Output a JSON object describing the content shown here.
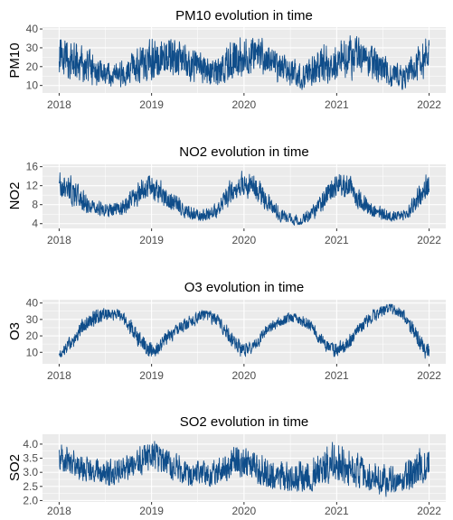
{
  "chart_data": [
    {
      "type": "line",
      "title": "PM10 evolution in time",
      "xlabel": "",
      "ylabel": "PM10",
      "x_ticks": [
        "2018",
        "2019",
        "2020",
        "2021",
        "2022"
      ],
      "xlim": [
        "2018-01-01",
        "2022-01-01"
      ],
      "y_ticks": [
        10,
        20,
        30,
        40
      ],
      "ylim": [
        6,
        41
      ],
      "grid": true,
      "line_color": "#0f4d8a",
      "panel_bg": "#ebebeb",
      "grid_color": "#ffffff",
      "x": [
        "2018-01",
        "2018-02",
        "2018-03",
        "2018-04",
        "2018-05",
        "2018-06",
        "2018-07",
        "2018-08",
        "2018-09",
        "2018-10",
        "2018-11",
        "2018-12",
        "2019-01",
        "2019-02",
        "2019-03",
        "2019-04",
        "2019-05",
        "2019-06",
        "2019-07",
        "2019-08",
        "2019-09",
        "2019-10",
        "2019-11",
        "2019-12",
        "2020-01",
        "2020-02",
        "2020-03",
        "2020-04",
        "2020-05",
        "2020-06",
        "2020-07",
        "2020-08",
        "2020-09",
        "2020-10",
        "2020-11",
        "2020-12",
        "2021-01",
        "2021-02",
        "2021-03",
        "2021-04",
        "2021-05",
        "2021-06",
        "2021-07",
        "2021-08",
        "2021-09",
        "2021-10",
        "2021-11",
        "2021-12"
      ],
      "series": [
        {
          "name": "",
          "center": [
            27,
            24,
            22,
            20,
            19,
            17,
            16,
            16,
            18,
            20,
            21,
            19,
            23,
            25,
            26,
            24,
            22,
            20,
            19,
            17,
            18,
            21,
            23,
            22,
            24,
            26,
            25,
            22,
            20,
            17,
            15,
            14,
            16,
            19,
            21,
            20,
            22,
            24,
            26,
            25,
            23,
            20,
            17,
            15,
            14,
            16,
            22,
            26
          ],
          "low": [
            12,
            9,
            8,
            9,
            8,
            7,
            7,
            7,
            8,
            9,
            10,
            11,
            11,
            11,
            12,
            11,
            10,
            9,
            8,
            7,
            8,
            9,
            10,
            11,
            12,
            12,
            11,
            10,
            9,
            8,
            7,
            7,
            7,
            8,
            9,
            10,
            11,
            11,
            12,
            11,
            10,
            9,
            8,
            7,
            7,
            8,
            10,
            12
          ],
          "high": [
            38,
            37,
            35,
            32,
            29,
            27,
            25,
            24,
            27,
            30,
            34,
            37,
            38,
            39,
            39,
            36,
            33,
            31,
            29,
            26,
            28,
            32,
            37,
            39,
            39,
            39,
            37,
            33,
            30,
            27,
            25,
            24,
            26,
            31,
            35,
            36,
            37,
            38,
            39,
            37,
            34,
            30,
            27,
            24,
            23,
            27,
            34,
            39
          ]
        }
      ]
    },
    {
      "type": "line",
      "title": "NO2 evolution in time",
      "xlabel": "",
      "ylabel": "NO2",
      "x_ticks": [
        "2018",
        "2019",
        "2020",
        "2021",
        "2022"
      ],
      "xlim": [
        "2018-01-01",
        "2022-01-01"
      ],
      "y_ticks": [
        4,
        8,
        12,
        16
      ],
      "ylim": [
        3,
        16.5
      ],
      "grid": true,
      "line_color": "#0f4d8a",
      "panel_bg": "#ebebeb",
      "grid_color": "#ffffff",
      "x": [
        "2018-01",
        "2018-02",
        "2018-03",
        "2018-04",
        "2018-05",
        "2018-06",
        "2018-07",
        "2018-08",
        "2018-09",
        "2018-10",
        "2018-11",
        "2018-12",
        "2019-01",
        "2019-02",
        "2019-03",
        "2019-04",
        "2019-05",
        "2019-06",
        "2019-07",
        "2019-08",
        "2019-09",
        "2019-10",
        "2019-11",
        "2019-12",
        "2020-01",
        "2020-02",
        "2020-03",
        "2020-04",
        "2020-05",
        "2020-06",
        "2020-07",
        "2020-08",
        "2020-09",
        "2020-10",
        "2020-11",
        "2020-12",
        "2021-01",
        "2021-02",
        "2021-03",
        "2021-04",
        "2021-05",
        "2021-06",
        "2021-07",
        "2021-08",
        "2021-09",
        "2021-10",
        "2021-11",
        "2021-12"
      ],
      "series": [
        {
          "name": "",
          "center": [
            11.5,
            10.5,
            9.0,
            8.0,
            7.2,
            6.8,
            6.7,
            6.9,
            7.5,
            8.8,
            10.5,
            11.8,
            11.5,
            10.2,
            8.8,
            7.5,
            6.5,
            5.8,
            5.5,
            5.8,
            6.8,
            8.8,
            11.0,
            12.0,
            12.3,
            11.0,
            9.2,
            7.4,
            6.0,
            5.0,
            4.6,
            4.8,
            5.6,
            7.2,
            9.5,
            11.6,
            12.5,
            11.5,
            9.8,
            8.0,
            6.8,
            6.0,
            5.6,
            5.5,
            5.8,
            6.8,
            9.2,
            11.4
          ],
          "low": [
            8.5,
            7.5,
            6.5,
            6.0,
            5.5,
            5.2,
            5.0,
            5.2,
            5.5,
            6.5,
            7.5,
            8.5,
            8.0,
            7.2,
            6.2,
            5.5,
            4.8,
            4.3,
            4.1,
            4.3,
            5.0,
            6.3,
            8.0,
            8.8,
            9.0,
            7.8,
            6.3,
            5.1,
            4.3,
            3.7,
            3.4,
            3.5,
            4.0,
            5.0,
            6.6,
            8.2,
            9.0,
            8.2,
            7.0,
            5.8,
            5.0,
            4.5,
            4.2,
            4.1,
            4.3,
            5.0,
            6.6,
            8.2
          ],
          "high": [
            15.5,
            14.8,
            12.5,
            10.8,
            9.6,
            9.0,
            8.7,
            9.0,
            10.0,
            11.8,
            13.8,
            15.0,
            14.8,
            13.5,
            11.8,
            10.0,
            8.8,
            7.8,
            7.3,
            7.8,
            9.0,
            11.8,
            14.5,
            15.5,
            15.8,
            14.6,
            12.4,
            10.0,
            8.2,
            6.8,
            6.2,
            6.5,
            7.6,
            9.8,
            12.6,
            14.8,
            15.8,
            14.9,
            12.9,
            10.6,
            9.0,
            8.0,
            7.4,
            7.3,
            7.7,
            9.0,
            12.2,
            15.5
          ]
        }
      ]
    },
    {
      "type": "line",
      "title": "O3 evolution in time",
      "xlabel": "",
      "ylabel": "O3",
      "x_ticks": [
        "2018",
        "2019",
        "2020",
        "2021",
        "2022"
      ],
      "xlim": [
        "2018-01-01",
        "2022-01-01"
      ],
      "y_ticks": [
        10,
        20,
        30,
        40
      ],
      "ylim": [
        3,
        42
      ],
      "grid": true,
      "line_color": "#0f4d8a",
      "panel_bg": "#ebebeb",
      "grid_color": "#ffffff",
      "x": [
        "2018-01",
        "2018-02",
        "2018-03",
        "2018-04",
        "2018-05",
        "2018-06",
        "2018-07",
        "2018-08",
        "2018-09",
        "2018-10",
        "2018-11",
        "2018-12",
        "2019-01",
        "2019-02",
        "2019-03",
        "2019-04",
        "2019-05",
        "2019-06",
        "2019-07",
        "2019-08",
        "2019-09",
        "2019-10",
        "2019-11",
        "2019-12",
        "2020-01",
        "2020-02",
        "2020-03",
        "2020-04",
        "2020-05",
        "2020-06",
        "2020-07",
        "2020-08",
        "2020-09",
        "2020-10",
        "2020-11",
        "2020-12",
        "2021-01",
        "2021-02",
        "2021-03",
        "2021-04",
        "2021-05",
        "2021-06",
        "2021-07",
        "2021-08",
        "2021-09",
        "2021-10",
        "2021-11",
        "2021-12"
      ],
      "series": [
        {
          "name": "",
          "center": [
            10,
            15,
            22,
            28,
            31,
            33,
            34,
            33,
            30,
            25,
            18,
            12,
            11,
            16,
            21,
            24,
            27,
            30,
            33,
            32,
            29,
            24,
            17,
            12,
            11,
            15,
            21,
            25,
            28,
            30,
            31,
            29,
            26,
            21,
            15,
            11,
            12,
            16,
            22,
            27,
            31,
            35,
            37,
            36,
            33,
            27,
            18,
            12
          ],
          "low": [
            6,
            10,
            16,
            22,
            25,
            27,
            28,
            27,
            24,
            18,
            11,
            6,
            5,
            10,
            15,
            19,
            22,
            25,
            28,
            27,
            24,
            18,
            11,
            6,
            6,
            10,
            16,
            21,
            24,
            26,
            27,
            25,
            22,
            16,
            10,
            6,
            7,
            11,
            17,
            22,
            26,
            30,
            32,
            31,
            28,
            21,
            12,
            5
          ],
          "high": [
            15,
            21,
            28,
            34,
            37,
            38,
            38,
            37,
            35,
            31,
            25,
            18,
            17,
            22,
            26,
            29,
            32,
            35,
            37,
            36,
            34,
            30,
            24,
            18,
            17,
            21,
            26,
            30,
            33,
            35,
            35,
            33,
            31,
            27,
            21,
            16,
            18,
            22,
            27,
            32,
            36,
            39,
            40,
            40,
            38,
            33,
            25,
            18
          ]
        }
      ]
    },
    {
      "type": "line",
      "title": "SO2 evolution in time",
      "xlabel": "",
      "ylabel": "SO2",
      "x_ticks": [
        "2018",
        "2019",
        "2020",
        "2021",
        "2022"
      ],
      "xlim": [
        "2018-01-01",
        "2022-01-01"
      ],
      "y_ticks": [
        "2.0",
        "2.5",
        "3.0",
        "3.5",
        "4.0"
      ],
      "ylim": [
        1.95,
        4.35
      ],
      "grid": true,
      "line_color": "#0f4d8a",
      "panel_bg": "#ebebeb",
      "grid_color": "#ffffff",
      "x": [
        "2018-01",
        "2018-02",
        "2018-03",
        "2018-04",
        "2018-05",
        "2018-06",
        "2018-07",
        "2018-08",
        "2018-09",
        "2018-10",
        "2018-11",
        "2018-12",
        "2019-01",
        "2019-02",
        "2019-03",
        "2019-04",
        "2019-05",
        "2019-06",
        "2019-07",
        "2019-08",
        "2019-09",
        "2019-10",
        "2019-11",
        "2019-12",
        "2020-01",
        "2020-02",
        "2020-03",
        "2020-04",
        "2020-05",
        "2020-06",
        "2020-07",
        "2020-08",
        "2020-09",
        "2020-10",
        "2020-11",
        "2020-12",
        "2021-01",
        "2021-02",
        "2021-03",
        "2021-04",
        "2021-05",
        "2021-06",
        "2021-07",
        "2021-08",
        "2021-09",
        "2021-10",
        "2021-11",
        "2021-12"
      ],
      "series": [
        {
          "name": "",
          "center": [
            3.5,
            3.3,
            3.1,
            3.0,
            3.0,
            2.9,
            2.9,
            3.0,
            3.1,
            3.3,
            3.4,
            3.6,
            3.6,
            3.4,
            3.2,
            3.1,
            3.0,
            2.9,
            2.9,
            2.9,
            3.0,
            3.1,
            3.2,
            3.3,
            3.2,
            3.0,
            2.9,
            2.8,
            2.8,
            2.7,
            2.7,
            2.7,
            2.8,
            2.9,
            3.1,
            3.3,
            3.2,
            3.0,
            2.9,
            2.8,
            2.7,
            2.6,
            2.6,
            2.6,
            2.7,
            2.8,
            3.0,
            3.2
          ],
          "low": [
            2.9,
            2.7,
            2.6,
            2.5,
            2.5,
            2.4,
            2.4,
            2.5,
            2.6,
            2.7,
            2.8,
            2.9,
            2.9,
            2.7,
            2.6,
            2.5,
            2.5,
            2.4,
            2.4,
            2.4,
            2.5,
            2.5,
            2.6,
            2.7,
            2.6,
            2.5,
            2.4,
            2.3,
            2.3,
            2.2,
            2.2,
            2.2,
            2.3,
            2.3,
            2.5,
            2.6,
            2.6,
            2.4,
            2.3,
            2.3,
            2.2,
            2.1,
            2.1,
            2.1,
            2.2,
            2.3,
            2.4,
            2.6
          ],
          "high": [
            4.2,
            4.0,
            3.8,
            3.7,
            3.6,
            3.5,
            3.5,
            3.6,
            3.7,
            3.9,
            4.1,
            4.2,
            4.2,
            4.1,
            3.9,
            3.8,
            3.7,
            3.5,
            3.5,
            3.6,
            3.7,
            3.8,
            4.0,
            4.2,
            4.1,
            3.9,
            3.8,
            3.6,
            3.6,
            3.5,
            3.5,
            3.6,
            3.7,
            3.9,
            4.1,
            4.2,
            4.2,
            4.0,
            3.8,
            3.7,
            3.6,
            3.4,
            3.4,
            3.4,
            3.5,
            3.7,
            4.0,
            4.2
          ]
        }
      ]
    }
  ]
}
